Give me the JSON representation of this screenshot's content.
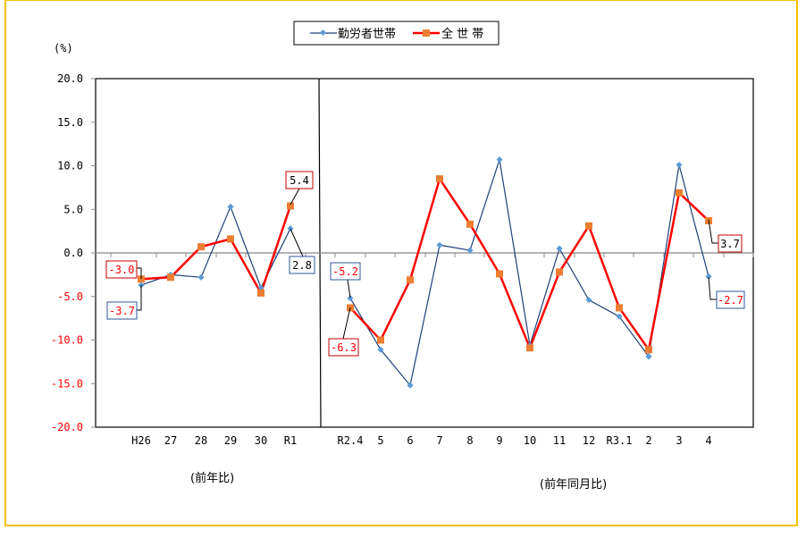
{
  "chart_data": {
    "type": "line",
    "title": "",
    "ylabel": "(%)",
    "xlabel_groups": [
      {
        "label": "(前年比)",
        "categories": [
          "H26",
          "27",
          "28",
          "29",
          "30",
          "R1"
        ]
      },
      {
        "label": "(前年同月比)",
        "categories": [
          "R2.4",
          "5",
          "6",
          "7",
          "8",
          "9",
          "10",
          "11",
          "12",
          "R3.1",
          "2",
          "3",
          "4"
        ]
      }
    ],
    "categories": [
      "H26",
      "27",
      "28",
      "29",
      "30",
      "R1",
      "R2.4",
      "5",
      "6",
      "7",
      "8",
      "9",
      "10",
      "11",
      "12",
      "R3.1",
      "2",
      "3",
      "4"
    ],
    "ylim": [
      -20,
      20
    ],
    "yticks": [
      "20.0",
      "15.0",
      "10.0",
      "5.0",
      "0.0",
      "-5.0",
      "-10.0",
      "-15.0",
      "-20.0"
    ],
    "ytick_colors": {
      "positive": "#000000",
      "negative": "#ff0000"
    },
    "grid": false,
    "legend_position": "top",
    "series": [
      {
        "name": "勤労者世帯",
        "color": "#1f3f7a",
        "marker_color": "#5b9bd5",
        "marker": "diamond",
        "values": [
          -3.7,
          -2.5,
          -2.8,
          5.3,
          -4.0,
          2.8,
          -5.2,
          -11.1,
          -15.2,
          0.9,
          0.3,
          10.7,
          -10.6,
          0.5,
          -5.4,
          -7.3,
          -11.9,
          10.1,
          -2.7
        ]
      },
      {
        "name": "全 世 帯",
        "color": "#ff0000",
        "marker_color": "#ed7d31",
        "marker": "square",
        "values": [
          -3.0,
          -2.8,
          0.7,
          1.6,
          -4.6,
          5.4,
          -6.3,
          -10.0,
          -3.1,
          8.5,
          3.3,
          -2.4,
          -10.9,
          -2.2,
          3.1,
          -6.3,
          -11.1,
          6.9,
          3.7
        ]
      }
    ],
    "annotations": [
      {
        "text": "-3.0",
        "series": "全 世 帯",
        "category": "H26",
        "text_color": "#ff0000",
        "border_color": "#c00000"
      },
      {
        "text": "-3.7",
        "series": "勤労者世帯",
        "category": "H26",
        "text_color": "#ff0000",
        "border_color": "#2f5597"
      },
      {
        "text": "5.4",
        "series": "全 世 帯",
        "category": "R1",
        "text_color": "#000000",
        "border_color": "#c00000"
      },
      {
        "text": "2.8",
        "series": "勤労者世帯",
        "category": "R1",
        "text_color": "#000000",
        "border_color": "#2f5597"
      },
      {
        "text": "-5.2",
        "series": "勤労者世帯",
        "category": "R2.4",
        "text_color": "#ff0000",
        "border_color": "#2f5597"
      },
      {
        "text": "-6.3",
        "series": "全 世 帯",
        "category": "R2.4",
        "text_color": "#ff0000",
        "border_color": "#c00000"
      },
      {
        "text": "3.7",
        "series": "全 世 帯",
        "category": "4",
        "text_color": "#000000",
        "border_color": "#c00000"
      },
      {
        "text": "-2.7",
        "series": "勤労者世帯",
        "category": "4",
        "text_color": "#ff0000",
        "border_color": "#2f5597"
      }
    ]
  },
  "legend": {
    "items": [
      {
        "label": "勤労者世帯"
      },
      {
        "label": "全 世 帯"
      }
    ]
  },
  "axis": {
    "y_unit": "(%)",
    "group_labels": [
      "(前年比)",
      "(前年同月比)"
    ]
  }
}
